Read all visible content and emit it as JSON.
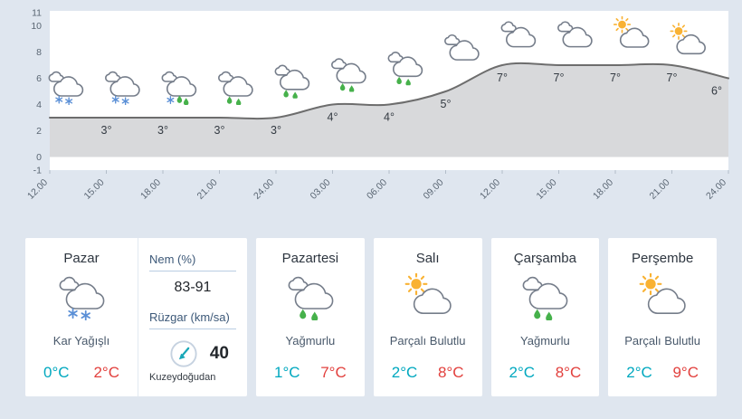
{
  "colors": {
    "page_bg": "#dfe6ef",
    "card_bg": "#ffffff",
    "chart_plot_bg": "#ffffff",
    "chart_area_fill": "#d8d9db",
    "chart_line": "#6d6d6d",
    "axis_text": "#5a6673",
    "tick": "#b3bdc9",
    "point_label": "#333a42",
    "min_temp": "#00a8bf",
    "max_temp": "#e2403d",
    "snowflake": "#5a8fd6",
    "raindrop": "#46b14b",
    "sun": "#f9b233",
    "cloud_stroke": "#757d8a",
    "detail_label": "#3c5878",
    "label_underline": "#b9cde2",
    "compass_ring": "#c6d2e0",
    "compass_arrow": "#18a7b7"
  },
  "chart_data": {
    "type": "line",
    "title": "",
    "xlabel": "",
    "ylabel": "",
    "x_labels": [
      "12.00",
      "15.00",
      "18.00",
      "21.00",
      "24.00",
      "03.00",
      "06.00",
      "09.00",
      "12.00",
      "15.00",
      "18.00",
      "21.00",
      "24.00"
    ],
    "y_ticks": [
      11,
      10,
      8,
      6,
      4,
      2,
      0,
      -1
    ],
    "ylim": [
      -1,
      11
    ],
    "series": [
      {
        "name": "temperature",
        "values": [
          3,
          3,
          3,
          3,
          3,
          4,
          4,
          5,
          7,
          7,
          7,
          7,
          6
        ]
      }
    ],
    "point_labels": [
      "",
      "3°",
      "3°",
      "3°",
      "3°",
      "4°",
      "4°",
      "5°",
      "7°",
      "7°",
      "7°",
      "7°",
      "6°"
    ],
    "point_icons": [
      "",
      "snow",
      "snow",
      "sleet",
      "rain",
      "rain",
      "rain",
      "rain",
      "cloud",
      "cloud",
      "cloud",
      "sun-cloud",
      "sun-cloud"
    ],
    "area_baseline": 0,
    "grid": false,
    "legend": false
  },
  "days": [
    {
      "name": "Pazar",
      "icon": "snow",
      "condition": "Kar Yağışlı",
      "min": "0°C",
      "max": "2°C"
    },
    {
      "name": "Pazartesi",
      "icon": "rain",
      "condition": "Yağmurlu",
      "min": "1°C",
      "max": "7°C"
    },
    {
      "name": "Salı",
      "icon": "sun-cloud",
      "condition": "Parçalı Bulutlu",
      "min": "2°C",
      "max": "8°C"
    },
    {
      "name": "Çarşamba",
      "icon": "rain",
      "condition": "Yağmurlu",
      "min": "2°C",
      "max": "8°C"
    },
    {
      "name": "Perşembe",
      "icon": "sun-cloud",
      "condition": "Parçalı Bulutlu",
      "min": "2°C",
      "max": "9°C"
    }
  ],
  "details": {
    "humidity_label": "Nem (%)",
    "humidity_value": "83-91",
    "wind_label": "Rüzgar (km/sa)",
    "wind_value": "40",
    "wind_direction": "Kuzeydoğudan",
    "wind_icon": "compass-arrow-southwest-icon"
  }
}
